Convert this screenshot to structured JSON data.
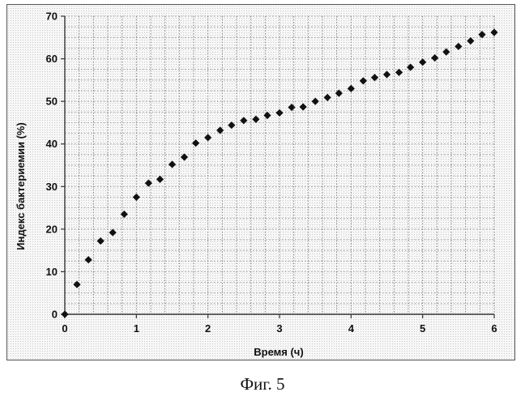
{
  "caption": "Фиг. 5",
  "chart_data": {
    "type": "scatter",
    "title": "",
    "xlabel": "Время (ч)",
    "ylabel": "Индекс бактериемии (%)",
    "xlim": [
      0,
      6
    ],
    "ylim": [
      0,
      70
    ],
    "xticks": [
      0,
      1,
      2,
      3,
      4,
      5,
      6
    ],
    "yticks": [
      0,
      10,
      20,
      30,
      40,
      50,
      60,
      70
    ],
    "grid": true,
    "marker": "diamond",
    "colors": {
      "marker": "#111111",
      "grid": "#777777",
      "axis": "#333333"
    },
    "series": [
      {
        "x": [
          0,
          0.17,
          0.33,
          0.5,
          0.67,
          0.83,
          1.0,
          1.17,
          1.33,
          1.5,
          1.67,
          1.83,
          2.0,
          2.17,
          2.33,
          2.5,
          2.67,
          2.83,
          3.0,
          3.17,
          3.33,
          3.5,
          3.67,
          3.83,
          4.0,
          4.17,
          4.33,
          4.5,
          4.67,
          4.83,
          5.0,
          5.17,
          5.33,
          5.5,
          5.67,
          5.83,
          6.0
        ],
        "y": [
          0,
          7,
          12.8,
          17.2,
          19.2,
          23.5,
          27.5,
          30.8,
          31.7,
          35.2,
          36.9,
          40.2,
          41.5,
          43.2,
          44.4,
          45.5,
          45.8,
          46.7,
          47.3,
          48.6,
          48.7,
          50.0,
          50.9,
          51.9,
          53.0,
          54.8,
          55.6,
          56.3,
          56.8,
          58.0,
          59.2,
          60.2,
          61.6,
          62.9,
          64.2,
          65.7,
          66.2
        ]
      }
    ]
  }
}
